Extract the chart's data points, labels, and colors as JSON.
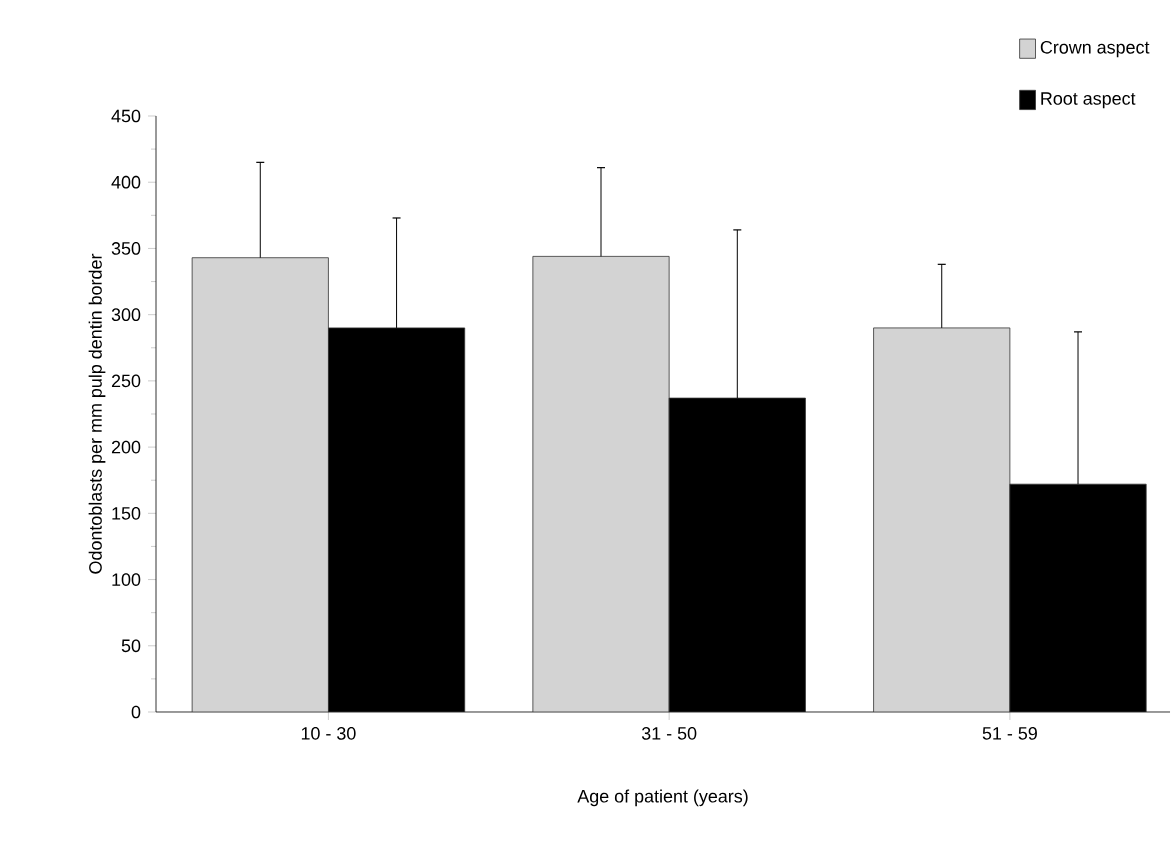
{
  "chart_data": {
    "type": "bar",
    "xlabel": "Age of patient (years)",
    "ylabel": "Odontoblasts per mm pulp dentin border",
    "categories": [
      "10 - 30",
      "31 - 50",
      "51 - 59"
    ],
    "series": [
      {
        "name": "Crown aspect",
        "color": "#d3d3d3",
        "values": [
          343,
          344,
          290
        ],
        "errors": [
          [
            343,
            415
          ],
          [
            344,
            411
          ],
          [
            290,
            338
          ]
        ]
      },
      {
        "name": "Root aspect",
        "color": "#000000",
        "values": [
          290,
          237,
          172
        ],
        "errors": [
          [
            290,
            373
          ],
          [
            237,
            364
          ],
          [
            172,
            287
          ]
        ]
      }
    ],
    "ylim": [
      0,
      450
    ],
    "yticks": [
      0,
      50,
      100,
      150,
      200,
      250,
      300,
      350,
      400,
      450
    ],
    "grid": false,
    "legend": "top right"
  }
}
